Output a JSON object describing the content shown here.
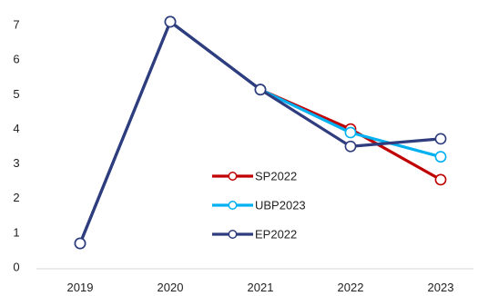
{
  "chart_data": {
    "type": "line",
    "title": "",
    "xlabel": "",
    "ylabel": "",
    "x": [
      "2019",
      "2020",
      "2021",
      "2022",
      "2023"
    ],
    "y_ticks": [
      "0",
      "1",
      "2",
      "3",
      "4",
      "5",
      "6",
      "7"
    ],
    "ylim": [
      0,
      7
    ],
    "grid": false,
    "legend_position": "center-right",
    "series": [
      {
        "name": "SP2022",
        "color": "#c00000",
        "values": [
          0.68,
          7.08,
          5.12,
          3.98,
          2.52
        ]
      },
      {
        "name": "UBP2023",
        "color": "#00b0f0",
        "values": [
          0.68,
          7.08,
          5.12,
          3.88,
          3.18
        ]
      },
      {
        "name": "EP2022",
        "color": "#2f3c7e",
        "values": [
          0.68,
          7.08,
          5.12,
          3.48,
          3.7
        ]
      }
    ]
  }
}
